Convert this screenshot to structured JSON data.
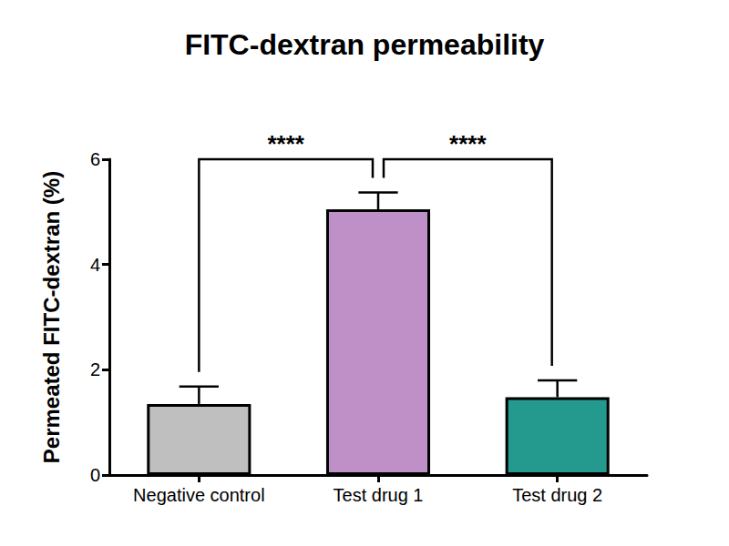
{
  "chart_data": {
    "type": "bar",
    "title": "FITC-dextran permeability",
    "y_label": "Permeated FITC-dextran (%)",
    "categories": [
      "Negative control",
      "Test drug 1",
      "Test drug 2"
    ],
    "values": [
      1.35,
      5.05,
      1.48
    ],
    "errors": [
      0.33,
      0.32,
      0.32
    ],
    "colors": [
      "#bfbfbf",
      "#bf8fc8",
      "#239a8d"
    ],
    "ylim": [
      0,
      6
    ],
    "yticks": [
      0,
      2,
      4,
      6
    ],
    "grid": false,
    "annotations": [
      {
        "from": "Negative control",
        "to": "Test drug 1",
        "y": 6,
        "label": "****"
      },
      {
        "from": "Test drug 1",
        "to": "Test drug 2",
        "y": 6,
        "label": "****"
      }
    ]
  }
}
